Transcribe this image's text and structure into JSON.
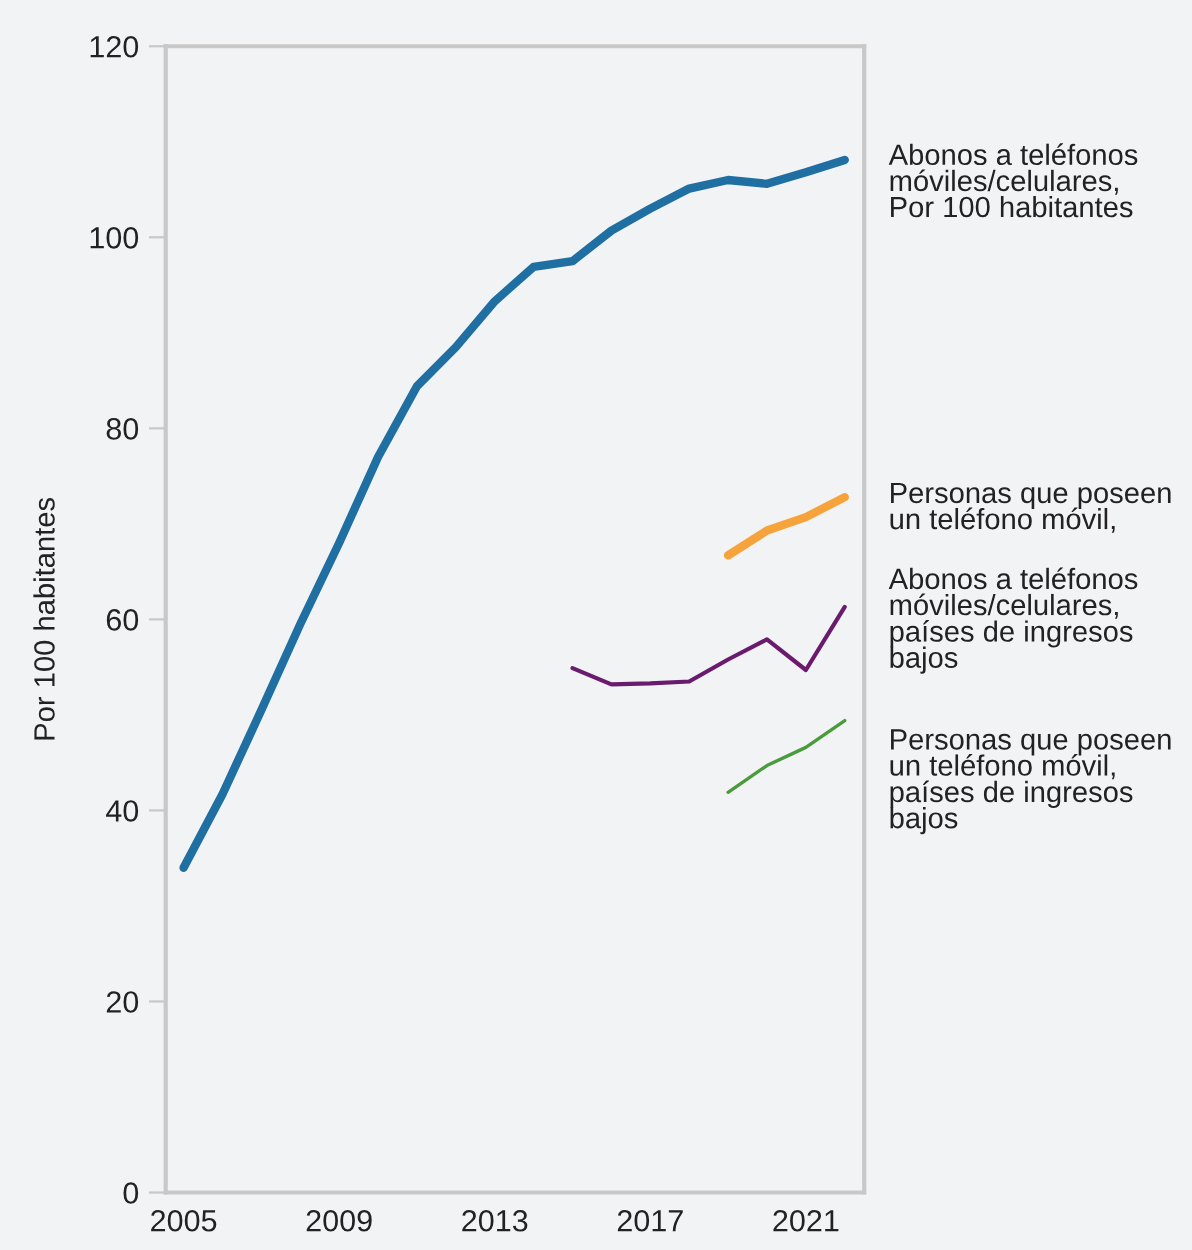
{
  "chart_data": {
    "type": "line",
    "ylabel": "Por 100 habitantes",
    "xlim": [
      2004.54,
      2022.5
    ],
    "xticks": [
      2005,
      2009,
      2013,
      2017,
      2021
    ],
    "ylim": [
      0,
      120
    ],
    "yticks": [
      0,
      20,
      40,
      60,
      80,
      100,
      120
    ],
    "grid": false,
    "legend": false,
    "series": [
      {
        "name": "Abonos a teléfonos\nmóviles/celulares,\nPor 100 habitantes",
        "color": "#1f6fa3",
        "x": [
          2005,
          2006,
          2007,
          2008,
          2009,
          2010,
          2011,
          2012,
          2013,
          2014,
          2015,
          2016,
          2017,
          2018,
          2019,
          2020,
          2021,
          2022
        ],
        "values": [
          34,
          41.7,
          50.5,
          59.5,
          68,
          77,
          84.4,
          88.5,
          93.3,
          96.9,
          97.5,
          100.7,
          103,
          105.1,
          106,
          105.6,
          106.8,
          108.1
        ]
      },
      {
        "name": "Personas que poseen\nun teléfono móvil,",
        "color": "#f7a33b",
        "x": [
          2019,
          2020,
          2021,
          2022
        ],
        "values": [
          66.7,
          69.3,
          70.7,
          72.8
        ]
      },
      {
        "name": "Abonos a teléfonos\nmóviles/celulares,\npaíses de ingresos\nbajos",
        "color": "#6a1b6e",
        "x": [
          2015,
          2016,
          2017,
          2018,
          2019,
          2020,
          2021,
          2022
        ],
        "values": [
          54.9,
          53.2,
          53.3,
          53.5,
          55.8,
          57.9,
          54.7,
          61.3
        ]
      },
      {
        "name": "Personas que poseen\nun teléfono móvil,\npaíses de ingresos\nbajos",
        "color": "#4a9a3e",
        "x": [
          2019,
          2020,
          2021,
          2022
        ],
        "values": [
          41.9,
          44.7,
          46.6,
          49.4
        ]
      }
    ]
  }
}
